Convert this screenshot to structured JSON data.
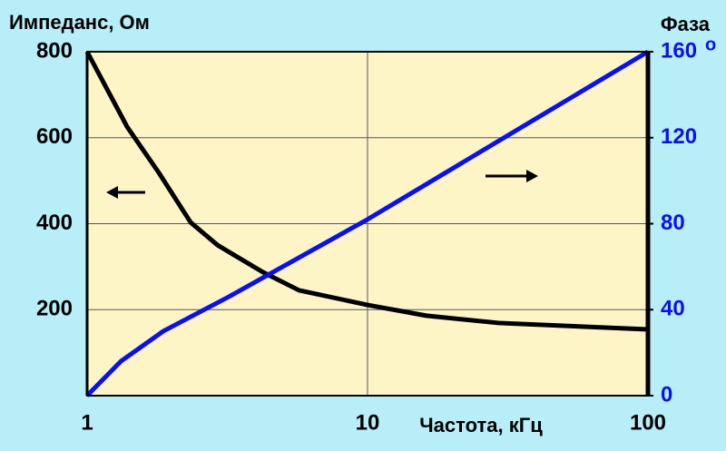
{
  "chart_data": {
    "type": "line",
    "y_label": "Импеданс, Ом",
    "y2_label": "Фаза",
    "x_label": "Частота, кГц",
    "y2_unit": "o",
    "xlog": true,
    "xlim": [
      1,
      100
    ],
    "xticks": [
      1,
      10,
      100
    ],
    "ylim": [
      0,
      800
    ],
    "yticks": [
      200,
      400,
      600,
      800
    ],
    "y2lim": [
      0,
      160
    ],
    "y2ticks": [
      0,
      40,
      80,
      120,
      160
    ],
    "grid": true,
    "series": [
      {
        "color": "#000000",
        "x": [
          1,
          1.39,
          1.8,
          2.34,
          2.92,
          4.24,
          5.7,
          10,
          16.2,
          29.4,
          100
        ],
        "values": [
          800,
          625,
          519,
          403,
          350,
          287,
          245,
          211,
          186,
          169,
          154
        ]
      },
      {
        "color": "#0a10f0",
        "axis": "y2",
        "x": [
          1,
          1.32,
          1.87,
          3.2,
          10,
          31.6,
          100
        ],
        "values": [
          0,
          16,
          30,
          46,
          82,
          121,
          160
        ]
      }
    ]
  }
}
